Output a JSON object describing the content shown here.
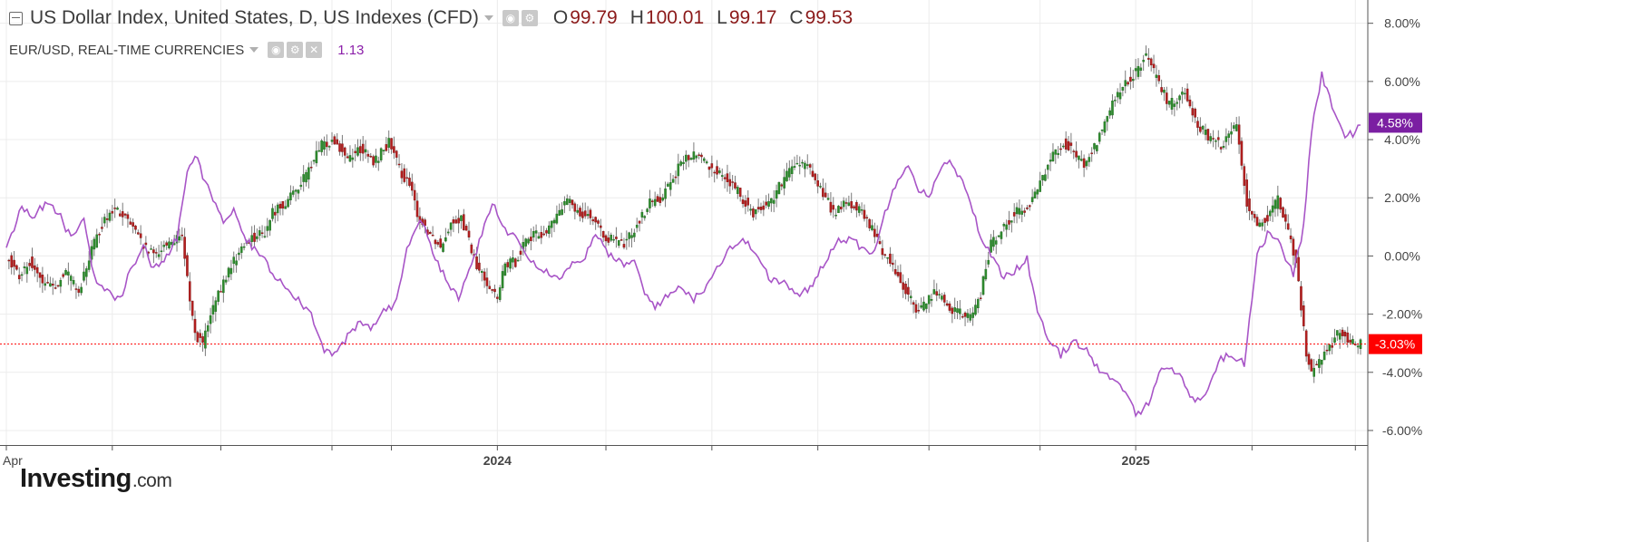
{
  "legend": {
    "main_title": "US Dollar Index, United States, D, US Indexes (CFD)",
    "open_key": "O",
    "open": "99.79",
    "high_key": "H",
    "high": "100.01",
    "low_key": "L",
    "low": "99.17",
    "close_key": "C",
    "close": "99.53",
    "secondary_title": "EUR/USD, REAL-TIME CURRENCIES",
    "secondary_value": "1.13"
  },
  "logo": {
    "brand": "Investing",
    "suffix": ".com"
  },
  "colors": {
    "up": "#2e8b2e",
    "down": "#b51f1f",
    "wick": "#7a7a7a",
    "eurusd": "#a855c7",
    "eurusd_badge": "#7b1fa2",
    "last_badge": "#ff0000",
    "grid": "#ececec",
    "axis": "#555555",
    "text": "#444444"
  },
  "chart_data": {
    "type": "line",
    "title": "US Dollar Index, United States, D, US Indexes (CFD)",
    "y_unit": "%",
    "ylim": [
      -6.5,
      8.8
    ],
    "yticks": [
      "8.00%",
      "6.00%",
      "4.00%",
      "2.00%",
      "0.00%",
      "-2.00%",
      "-4.00%",
      "-6.00%"
    ],
    "ytick_values": [
      8,
      6,
      4,
      2,
      0,
      -2,
      -4,
      -6
    ],
    "x_labels": [
      {
        "label": "Apr",
        "index": 0,
        "bold": false
      },
      {
        "label": "2024",
        "index": 190,
        "bold": true
      },
      {
        "label": "2025",
        "index": 437,
        "bold": true
      }
    ],
    "x_tick_indices": [
      0,
      41,
      83,
      126,
      149,
      190,
      232,
      273,
      314,
      357,
      400,
      437,
      482,
      522
    ],
    "n_bars": 525,
    "grid": true,
    "last_value_label": "-3.03%",
    "last_value": -3.03,
    "eurusd_label": "4.58%",
    "eurusd_last": 4.58,
    "series": [
      {
        "kind": "candlestick",
        "anchors": [
          [
            0,
            0.0
          ],
          [
            5,
            -0.7
          ],
          [
            9,
            -0.2
          ],
          [
            14,
            -0.9
          ],
          [
            18,
            -1.1
          ],
          [
            23,
            -0.6
          ],
          [
            28,
            -1.2
          ],
          [
            33,
            0.2
          ],
          [
            38,
            1.3
          ],
          [
            42,
            1.6
          ],
          [
            48,
            1.1
          ],
          [
            53,
            0.3
          ],
          [
            57,
            0.0
          ],
          [
            63,
            0.5
          ],
          [
            68,
            0.6
          ],
          [
            70,
            -0.8
          ],
          [
            73,
            -2.7
          ],
          [
            76,
            -3.0
          ],
          [
            80,
            -1.8
          ],
          [
            87,
            -0.3
          ],
          [
            94,
            0.6
          ],
          [
            100,
            0.8
          ],
          [
            103,
            1.5
          ],
          [
            110,
            2.0
          ],
          [
            116,
            2.8
          ],
          [
            122,
            3.8
          ],
          [
            127,
            4.0
          ],
          [
            132,
            3.4
          ],
          [
            137,
            3.7
          ],
          [
            142,
            3.2
          ],
          [
            148,
            3.9
          ],
          [
            152,
            3.0
          ],
          [
            156,
            2.4
          ],
          [
            160,
            1.2
          ],
          [
            164,
            0.8
          ],
          [
            168,
            0.3
          ],
          [
            172,
            1.2
          ],
          [
            176,
            1.3
          ],
          [
            179,
            0.5
          ],
          [
            182,
            -0.4
          ],
          [
            187,
            -1.0
          ],
          [
            190,
            -1.5
          ],
          [
            193,
            -0.3
          ],
          [
            197,
            -0.2
          ],
          [
            201,
            0.6
          ],
          [
            205,
            0.7
          ],
          [
            209,
            0.8
          ],
          [
            213,
            1.4
          ],
          [
            217,
            1.9
          ],
          [
            222,
            1.5
          ],
          [
            226,
            1.4
          ],
          [
            230,
            0.8
          ],
          [
            235,
            0.5
          ],
          [
            239,
            0.4
          ],
          [
            244,
            1.1
          ],
          [
            249,
            1.8
          ],
          [
            253,
            2.0
          ],
          [
            258,
            2.7
          ],
          [
            262,
            3.3
          ],
          [
            267,
            3.5
          ],
          [
            272,
            3.1
          ],
          [
            277,
            2.8
          ],
          [
            283,
            2.2
          ],
          [
            289,
            1.5
          ],
          [
            295,
            1.8
          ],
          [
            300,
            2.5
          ],
          [
            305,
            3.2
          ],
          [
            311,
            3.0
          ],
          [
            315,
            2.3
          ],
          [
            320,
            1.5
          ],
          [
            325,
            1.8
          ],
          [
            330,
            1.6
          ],
          [
            335,
            0.9
          ],
          [
            339,
            0.2
          ],
          [
            344,
            -0.5
          ],
          [
            349,
            -1.4
          ],
          [
            353,
            -1.9
          ],
          [
            359,
            -1.2
          ],
          [
            363,
            -1.6
          ],
          [
            367,
            -1.9
          ],
          [
            373,
            -2.1
          ],
          [
            377,
            -1.3
          ],
          [
            381,
            0.4
          ],
          [
            386,
            1.0
          ],
          [
            390,
            1.5
          ],
          [
            395,
            1.6
          ],
          [
            399,
            2.3
          ],
          [
            404,
            3.4
          ],
          [
            409,
            3.9
          ],
          [
            413,
            3.6
          ],
          [
            417,
            3.1
          ],
          [
            421,
            3.7
          ],
          [
            425,
            4.6
          ],
          [
            429,
            5.4
          ],
          [
            433,
            5.9
          ],
          [
            437,
            6.3
          ],
          [
            441,
            6.9
          ],
          [
            446,
            5.9
          ],
          [
            450,
            5.2
          ],
          [
            456,
            5.7
          ],
          [
            461,
            4.5
          ],
          [
            466,
            4.0
          ],
          [
            471,
            3.8
          ],
          [
            476,
            4.6
          ],
          [
            480,
            1.8
          ],
          [
            484,
            1.1
          ],
          [
            488,
            1.3
          ],
          [
            492,
            1.9
          ],
          [
            496,
            0.8
          ],
          [
            499,
            -0.2
          ],
          [
            501,
            -1.8
          ],
          [
            503,
            -3.3
          ],
          [
            505,
            -4.0
          ],
          [
            508,
            -3.6
          ],
          [
            512,
            -3.1
          ],
          [
            516,
            -2.6
          ],
          [
            520,
            -3.0
          ],
          [
            524,
            -3.03
          ]
        ]
      },
      {
        "kind": "line",
        "anchors": [
          [
            0,
            0.3
          ],
          [
            6,
            1.7
          ],
          [
            10,
            1.3
          ],
          [
            15,
            1.8
          ],
          [
            20,
            1.5
          ],
          [
            25,
            0.6
          ],
          [
            30,
            1.3
          ],
          [
            34,
            -0.7
          ],
          [
            38,
            -1.2
          ],
          [
            44,
            -1.5
          ],
          [
            48,
            -0.5
          ],
          [
            53,
            0.4
          ],
          [
            57,
            -0.5
          ],
          [
            62,
            0.0
          ],
          [
            66,
            0.6
          ],
          [
            70,
            2.8
          ],
          [
            73,
            3.5
          ],
          [
            77,
            2.5
          ],
          [
            81,
            1.8
          ],
          [
            84,
            1.2
          ],
          [
            88,
            1.5
          ],
          [
            93,
            0.5
          ],
          [
            98,
            0.1
          ],
          [
            103,
            -0.6
          ],
          [
            108,
            -1.0
          ],
          [
            113,
            -1.5
          ],
          [
            118,
            -2.0
          ],
          [
            123,
            -3.2
          ],
          [
            127,
            -3.4
          ],
          [
            132,
            -2.8
          ],
          [
            137,
            -2.3
          ],
          [
            141,
            -2.5
          ],
          [
            146,
            -1.9
          ],
          [
            151,
            -1.6
          ],
          [
            155,
            0.3
          ],
          [
            160,
            1.3
          ],
          [
            165,
            0.2
          ],
          [
            170,
            -0.8
          ],
          [
            175,
            -1.5
          ],
          [
            179,
            -0.5
          ],
          [
            184,
            0.7
          ],
          [
            188,
            1.8
          ],
          [
            193,
            0.9
          ],
          [
            198,
            0.6
          ],
          [
            203,
            -0.1
          ],
          [
            208,
            -0.5
          ],
          [
            214,
            -0.7
          ],
          [
            219,
            -0.3
          ],
          [
            224,
            0.0
          ],
          [
            228,
            0.7
          ],
          [
            233,
            0.1
          ],
          [
            238,
            -0.3
          ],
          [
            243,
            -0.2
          ],
          [
            247,
            -1.3
          ],
          [
            251,
            -1.7
          ],
          [
            256,
            -1.4
          ],
          [
            261,
            -1.0
          ],
          [
            266,
            -1.5
          ],
          [
            270,
            -1.1
          ],
          [
            275,
            -0.4
          ],
          [
            280,
            0.3
          ],
          [
            285,
            0.5
          ],
          [
            290,
            0.2
          ],
          [
            295,
            -0.8
          ],
          [
            301,
            -0.9
          ],
          [
            306,
            -1.4
          ],
          [
            311,
            -1.1
          ],
          [
            316,
            -0.3
          ],
          [
            321,
            0.5
          ],
          [
            326,
            0.6
          ],
          [
            331,
            0.3
          ],
          [
            336,
            0.1
          ],
          [
            340,
            1.5
          ],
          [
            345,
            2.7
          ],
          [
            349,
            3.2
          ],
          [
            353,
            2.3
          ],
          [
            357,
            2.0
          ],
          [
            361,
            3.0
          ],
          [
            365,
            3.2
          ],
          [
            369,
            2.7
          ],
          [
            373,
            1.8
          ],
          [
            377,
            0.7
          ],
          [
            381,
            0.0
          ],
          [
            386,
            -0.7
          ],
          [
            390,
            -0.5
          ],
          [
            395,
            -0.1
          ],
          [
            399,
            -2.0
          ],
          [
            404,
            -3.0
          ],
          [
            408,
            -3.4
          ],
          [
            413,
            -2.9
          ],
          [
            418,
            -3.2
          ],
          [
            423,
            -4.0
          ],
          [
            428,
            -4.3
          ],
          [
            433,
            -4.6
          ],
          [
            437,
            -5.5
          ],
          [
            442,
            -5.0
          ],
          [
            446,
            -4.0
          ],
          [
            451,
            -3.8
          ],
          [
            455,
            -4.3
          ],
          [
            460,
            -5.0
          ],
          [
            464,
            -4.8
          ],
          [
            469,
            -3.6
          ],
          [
            474,
            -3.4
          ],
          [
            479,
            -3.7
          ],
          [
            484,
            0.1
          ],
          [
            489,
            0.9
          ],
          [
            493,
            0.3
          ],
          [
            498,
            -0.6
          ],
          [
            502,
            1.0
          ],
          [
            505,
            4.3
          ],
          [
            509,
            6.2
          ],
          [
            513,
            5.2
          ],
          [
            517,
            4.2
          ],
          [
            521,
            4.2
          ],
          [
            524,
            4.58
          ]
        ]
      }
    ]
  }
}
